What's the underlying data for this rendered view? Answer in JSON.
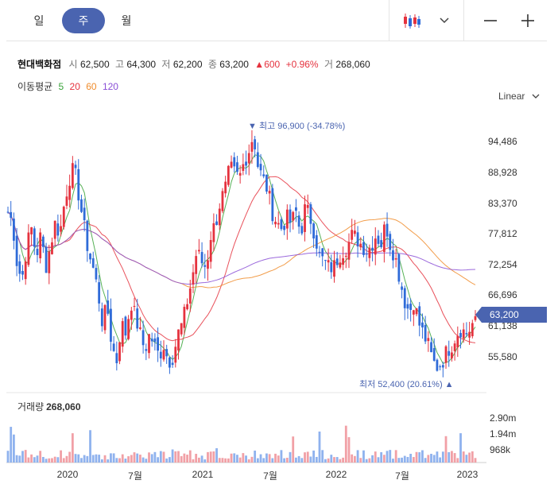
{
  "tabs": [
    {
      "label": "일"
    },
    {
      "label": "주",
      "active": true
    },
    {
      "label": "월"
    }
  ],
  "toolbar": {
    "chart_type_icon": "candlestick-icon",
    "dropdown_icon": "chevron-down-icon",
    "zoom_out_icon": "minus-icon",
    "zoom_in_icon": "plus-icon"
  },
  "quote": {
    "name": "현대백화점",
    "open_label": "시",
    "open": "62,500",
    "high_label": "고",
    "high": "64,300",
    "low_label": "저",
    "low": "62,200",
    "close_label": "종",
    "close": "63,200",
    "change_arrow": "▲",
    "change": "600",
    "change_pct": "+0.96%",
    "volume_label": "거",
    "volume": "268,060"
  },
  "moving_average": {
    "label": "이동평균",
    "periods": [
      {
        "value": "5",
        "color": "#3aa33a"
      },
      {
        "value": "20",
        "color": "#e5323e"
      },
      {
        "value": "60",
        "color": "#f08c2c"
      },
      {
        "value": "120",
        "color": "#8a4fd6"
      }
    ]
  },
  "scale_selector": {
    "label": "Linear"
  },
  "price_axis": {
    "ticks": [
      "94,486",
      "88,928",
      "83,370",
      "77,812",
      "72,254",
      "66,696",
      "61,138",
      "55,580"
    ]
  },
  "current_price_tag": "63,200",
  "annotations": {
    "high_text": "▼ 최고 96,900 (-34.78%)",
    "low_text": "최저 52,400 (20.61%) ▲"
  },
  "volume_panel": {
    "label": "거래량",
    "value": "268,060",
    "ticks": [
      "2.90m",
      "1.94m",
      "968k"
    ]
  },
  "x_axis": {
    "ticks": [
      "2020",
      "7월",
      "2021",
      "7월",
      "2022",
      "7월",
      "2023"
    ]
  },
  "chart_data": {
    "type": "candlestick",
    "interval": "weekly",
    "y_axis": {
      "min": 52000,
      "max": 99000,
      "ticks": [
        94486,
        88928,
        83370,
        77812,
        72254,
        66696,
        61138,
        55580
      ]
    },
    "x_ticks": [
      "2020",
      "7월",
      "2021",
      "7월",
      "2022",
      "7월",
      "2023"
    ],
    "trend_closes": [
      82000,
      80000,
      72000,
      70000,
      76000,
      79000,
      74000,
      78000,
      72000,
      76000,
      80000,
      78000,
      84000,
      88000,
      90000,
      85000,
      80000,
      75000,
      72000,
      68000,
      62000,
      65000,
      58000,
      55000,
      62000,
      60000,
      66000,
      63000,
      60000,
      57000,
      60000,
      58000,
      56000,
      58000,
      55000,
      56000,
      60000,
      62000,
      66000,
      70000,
      75000,
      73000,
      72000,
      78000,
      80000,
      84000,
      86000,
      90000,
      89000,
      88000,
      91000,
      93000,
      96000,
      90000,
      88000,
      86000,
      82000,
      80000,
      79000,
      81000,
      80000,
      82000,
      78000,
      83000,
      81000,
      78000,
      74000,
      73000,
      72000,
      72000,
      74000,
      75000,
      76000,
      78000,
      77000,
      76000,
      75000,
      76000,
      78000,
      76000,
      80000,
      76000,
      74000,
      70000,
      66000,
      64000,
      66000,
      62000,
      60000,
      58000,
      55000,
      54000,
      55000,
      57000,
      58000,
      60000,
      61000,
      60000,
      61000,
      63200
    ],
    "high": {
      "value": 96900,
      "label": "최고 96,900 (-34.78%)"
    },
    "low": {
      "value": 52400,
      "label": "최저 52,400 (20.61%)"
    },
    "last": {
      "open": 62500,
      "high": 64300,
      "low": 62200,
      "close": 63200,
      "change": 600,
      "change_pct": 0.96,
      "volume": 268060
    },
    "moving_averages": [
      5,
      20,
      60,
      120
    ],
    "volume_axis_ticks": [
      "968k",
      "1.94m",
      "2.90m"
    ],
    "colors": {
      "up": "#e5323e",
      "down": "#2f6bd8",
      "ma5": "#3aa33a",
      "ma20": "#e5323e",
      "ma60": "#f08c2c",
      "ma120": "#8a4fd6",
      "accent": "#4a64b0"
    }
  }
}
